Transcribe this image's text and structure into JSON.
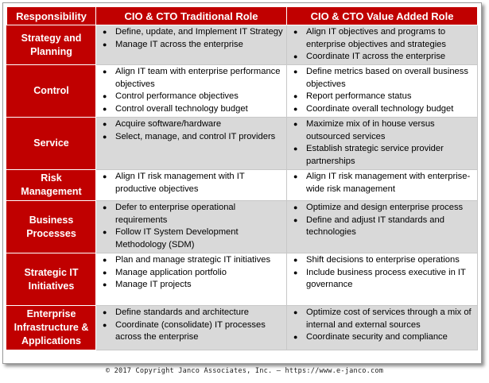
{
  "headers": {
    "responsibility": "Responsibility",
    "traditional": "CIO & CTO Traditional Role",
    "value_added": "CIO & CTO Value Added Role"
  },
  "rows": [
    {
      "label": "Strategy and Planning",
      "traditional": [
        "Define, update, and Implement IT Strategy",
        "Manage IT across the enterprise"
      ],
      "value_added": [
        "Align IT objectives and programs to enterprise objectives and strategies",
        "Coordinate IT across the enterprise"
      ]
    },
    {
      "label": "Control",
      "traditional": [
        "Align IT team with enterprise performance objectives",
        "Control performance objectives",
        "Control overall technology budget"
      ],
      "value_added": [
        "Define metrics based on overall business objectives",
        "Report performance status",
        "Coordinate overall technology budget"
      ]
    },
    {
      "label": "Service",
      "traditional": [
        "Acquire software/hardware",
        "Select, manage, and control IT providers"
      ],
      "value_added": [
        "Maximize mix of in house versus outsourced services",
        "Establish strategic service provider partnerships"
      ]
    },
    {
      "label": "Risk Management",
      "traditional": [
        "Align IT risk management with IT productive objectives"
      ],
      "value_added": [
        "Align IT risk management with enterprise-wide risk management"
      ]
    },
    {
      "label": "Business Processes",
      "traditional": [
        "Defer to enterprise operational requirements",
        "Follow IT System Development Methodology (SDM)"
      ],
      "value_added": [
        "Optimize and design enterprise process",
        "Define and adjust IT standards and technologies"
      ]
    },
    {
      "label": "Strategic IT Initiatives",
      "traditional": [
        "Plan and manage strategic IT initiatives",
        "Manage application portfolio",
        "Manage IT projects"
      ],
      "value_added": [
        "Shift decisions to enterprise operations",
        "Include business process executive in IT governance"
      ]
    },
    {
      "label": "Enterprise Infrastructure & Applications",
      "traditional": [
        "Define standards and architecture",
        "Coordinate (consolidate) IT processes across the enterprise"
      ],
      "value_added": [
        "Optimize cost of services through a mix of internal and external sources",
        "Coordinate security and compliance"
      ]
    }
  ],
  "bullet_glyph": "●",
  "footer": "© 2017 Copyright Janco Associates, Inc. – https://www.e-janco.com",
  "colors": {
    "header_red": "#c00000",
    "shade_gray": "#d9d9d9"
  }
}
